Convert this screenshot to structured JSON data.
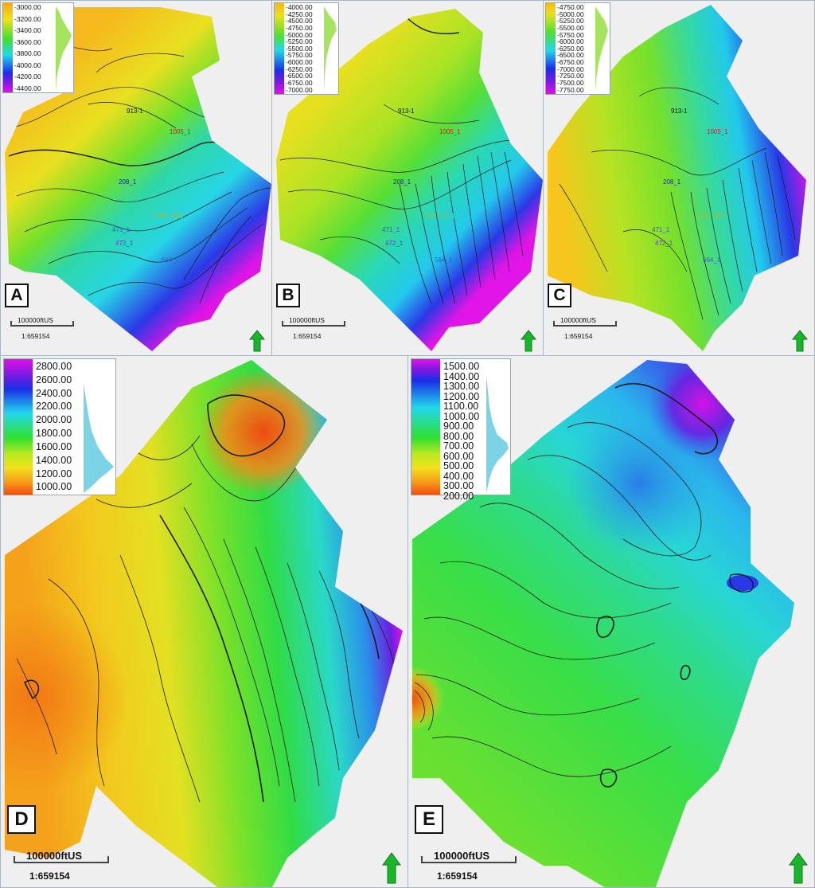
{
  "figure": {
    "panels": {
      "a": {
        "letter": "A",
        "legend_ticks": [
          "-3000.00",
          "-3200.00",
          "-3400.00",
          "-3600.00",
          "-3800.00",
          "-4000.00",
          "-4200.00",
          "-4400.00"
        ],
        "scale_label": "100000ftUS",
        "scale_ratio": "1:659154",
        "wells": [
          {
            "label": "913-1",
            "color": "#111111"
          },
          {
            "label": "1005_1",
            "color": "#d32020"
          },
          {
            "label": "208_1",
            "color": "#1c2a9a"
          },
          {
            "label": "D081-08-1",
            "color": "#9bbd3a"
          },
          {
            "label": "471_1",
            "color": "#3a5ac8"
          },
          {
            "label": "472_1",
            "color": "#6a3ac8"
          },
          {
            "label": "564_1",
            "color": "#3a5ac8"
          }
        ]
      },
      "b": {
        "letter": "B",
        "legend_ticks": [
          "-4000.00",
          "-4250.00",
          "-4500.00",
          "-4750.00",
          "-5000.00",
          "-5250.00",
          "-5500.00",
          "-5750.00",
          "-6000.00",
          "-6250.00",
          "-6500.00",
          "-6750.00",
          "-7000.00"
        ],
        "scale_label": "100000ftUS",
        "scale_ratio": "1:659154",
        "wells": [
          {
            "label": "913-1",
            "color": "#111111"
          },
          {
            "label": "1005_1",
            "color": "#d32020"
          },
          {
            "label": "208_1",
            "color": "#1c2a9a"
          },
          {
            "label": "D081-08-1",
            "color": "#9bbd3a"
          },
          {
            "label": "471_1",
            "color": "#3a5ac8"
          },
          {
            "label": "472_1",
            "color": "#6a3ac8"
          },
          {
            "label": "564_1",
            "color": "#3a5ac8"
          }
        ]
      },
      "c": {
        "letter": "C",
        "legend_ticks": [
          "-4750.00",
          "-5000.00",
          "-5250.00",
          "-5500.00",
          "-5750.00",
          "-6000.00",
          "-6250.00",
          "-6500.00",
          "-6750.00",
          "-7000.00",
          "-7250.00",
          "-7500.00",
          "-7750.00"
        ],
        "scale_label": "100000ftUS",
        "scale_ratio": "1:659154",
        "wells": [
          {
            "label": "913-1",
            "color": "#111111"
          },
          {
            "label": "1005_1",
            "color": "#d32020"
          },
          {
            "label": "208_1",
            "color": "#1c2a9a"
          },
          {
            "label": "D081-08-1",
            "color": "#9bbd3a"
          },
          {
            "label": "471_1",
            "color": "#3a5ac8"
          },
          {
            "label": "472_1",
            "color": "#6a3ac8"
          },
          {
            "label": "564_1",
            "color": "#3a5ac8"
          }
        ]
      },
      "d": {
        "letter": "D",
        "legend_ticks": [
          "2800.00",
          "2600.00",
          "2400.00",
          "2200.00",
          "2000.00",
          "1800.00",
          "1600.00",
          "1400.00",
          "1200.00",
          "1000.00"
        ],
        "scale_label": "100000ftUS",
        "scale_ratio": "1:659154"
      },
      "e": {
        "letter": "E",
        "legend_ticks": [
          "1500.00",
          "1400.00",
          "1300.00",
          "1200.00",
          "1100.00",
          "1000.00",
          "900.00",
          "800.00",
          "700.00",
          "600.00",
          "500.00",
          "400.00",
          "300.00",
          "200.00"
        ],
        "scale_label": "100000ftUS",
        "scale_ratio": "1:659154"
      }
    },
    "colors": {
      "magenta": "#e010e8",
      "purple": "#7a1ae0",
      "blue": "#1a2ee8",
      "cyan": "#22d8ea",
      "green": "#2fe030",
      "yellow_green": "#b8e820",
      "yellow": "#f2e21c",
      "orange": "#f7a01a",
      "red_orange": "#f24d0e",
      "contour": "#1b1b1b",
      "north_arrow": "#19b52a"
    }
  }
}
